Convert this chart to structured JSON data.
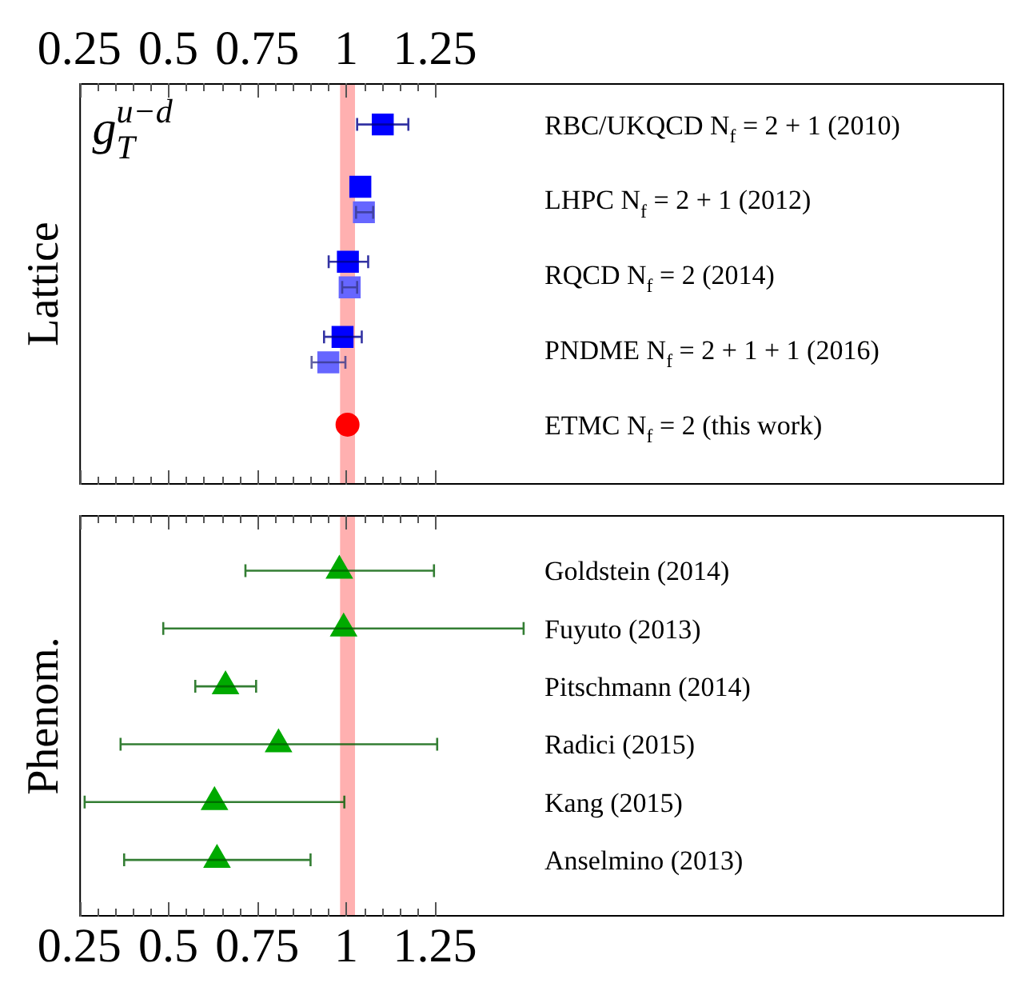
{
  "chart_data": [
    {
      "type": "scatter",
      "orientation": "horizontal",
      "ylabel": "Lattice",
      "annotations": [
        "g$_{T}$$^{u−d}$"
      ],
      "categories": [
        "RBC/UKQCD N$_{f}$ = 2 + 1 (2010)",
        "LHPC N$_{f}$ = 2 + 1 (2012)",
        "RQCD N$_{f}$ = 2 (2014)",
        "PNDME N$_{f}$ = 2 + 1 + 1 (2016)",
        "ETMC N$_{f}$ = 2 (this work)"
      ],
      "series": [
        {
          "color": "#0000ff",
          "marker": "square",
          "values": [
            1.103,
            1.04,
            1.005,
            0.99,
            null
          ],
          "errors": [
            [
              1.031,
              1.175
            ],
            null,
            [
              0.951,
              1.062
            ],
            [
              0.938,
              1.044
            ],
            null
          ]
        },
        {
          "color": "#6666ff",
          "marker": "square",
          "values": [
            null,
            1.05,
            1.01,
            0.95,
            null
          ],
          "errors": [
            null,
            [
              1.028,
              1.076
            ],
            [
              0.989,
              1.031
            ],
            [
              0.903,
              0.998
            ],
            null
          ]
        },
        {
          "color": "#ff0000",
          "marker": "circle",
          "values": [
            null,
            null,
            null,
            null,
            1.004
          ]
        }
      ],
      "bands": [
        {
          "axis": "x",
          "from": 0.983,
          "to": 1.025,
          "color": "#ffb0b0"
        }
      ],
      "xlim": [
        0.25,
        2.85
      ],
      "xticks": [
        0.25,
        {
          "value": 0.3,
          "label": null
        },
        {
          "value": 0.35,
          "label": null
        },
        {
          "value": 0.4,
          "label": null
        },
        {
          "value": 0.45,
          "label": null
        },
        0.5,
        {
          "value": 0.55,
          "label": null
        },
        {
          "value": 0.6,
          "label": null
        },
        {
          "value": 0.65,
          "label": null
        },
        {
          "value": 0.7,
          "label": null
        },
        0.75,
        {
          "value": 0.8,
          "label": null
        },
        {
          "value": 0.85,
          "label": null
        },
        {
          "value": 0.9,
          "label": null
        },
        {
          "value": 0.95,
          "label": null
        },
        1,
        {
          "value": 1.05,
          "label": null
        },
        {
          "value": 1.1,
          "label": null
        },
        {
          "value": 1.15,
          "label": null
        },
        {
          "value": 1.2,
          "label": null
        },
        1.25
      ]
    },
    {
      "type": "scatter",
      "orientation": "horizontal",
      "ylabel": "Phenom.",
      "categories": [
        "Goldstein (2014)",
        "Fuyuto (2013)",
        "Pitschmann (2014)",
        "Radici (2015)",
        "Kang (2015)",
        "Anselmino (2013)"
      ],
      "series": [
        {
          "color": "#00aa00",
          "marker": "triangle",
          "values": [
            0.981,
            0.993,
            0.661,
            0.81,
            0.63,
            0.637
          ],
          "errors": [
            [
              0.717,
              1.247
            ],
            [
              0.486,
              1.499
            ],
            [
              0.576,
              0.747
            ],
            [
              0.366,
              1.256
            ],
            [
              0.265,
              0.995
            ],
            [
              0.376,
              0.9
            ]
          ]
        }
      ],
      "bands": [
        {
          "axis": "x",
          "from": 0.983,
          "to": 1.025,
          "color": "#ffb0b0"
        }
      ],
      "xlim": [
        0.25,
        2.85
      ],
      "xticks": [
        0.25,
        {
          "value": 0.3,
          "label": null
        },
        {
          "value": 0.35,
          "label": null
        },
        {
          "value": 0.4,
          "label": null
        },
        {
          "value": 0.45,
          "label": null
        },
        0.5,
        {
          "value": 0.55,
          "label": null
        },
        {
          "value": 0.6,
          "label": null
        },
        {
          "value": 0.65,
          "label": null
        },
        {
          "value": 0.7,
          "label": null
        },
        0.75,
        {
          "value": 0.8,
          "label": null
        },
        {
          "value": 0.85,
          "label": null
        },
        {
          "value": 0.9,
          "label": null
        },
        {
          "value": 0.95,
          "label": null
        },
        1,
        {
          "value": 1.05,
          "label": null
        },
        {
          "value": 1.1,
          "label": null
        },
        {
          "value": 1.15,
          "label": null
        },
        {
          "value": 1.2,
          "label": null
        },
        1.25
      ]
    }
  ]
}
